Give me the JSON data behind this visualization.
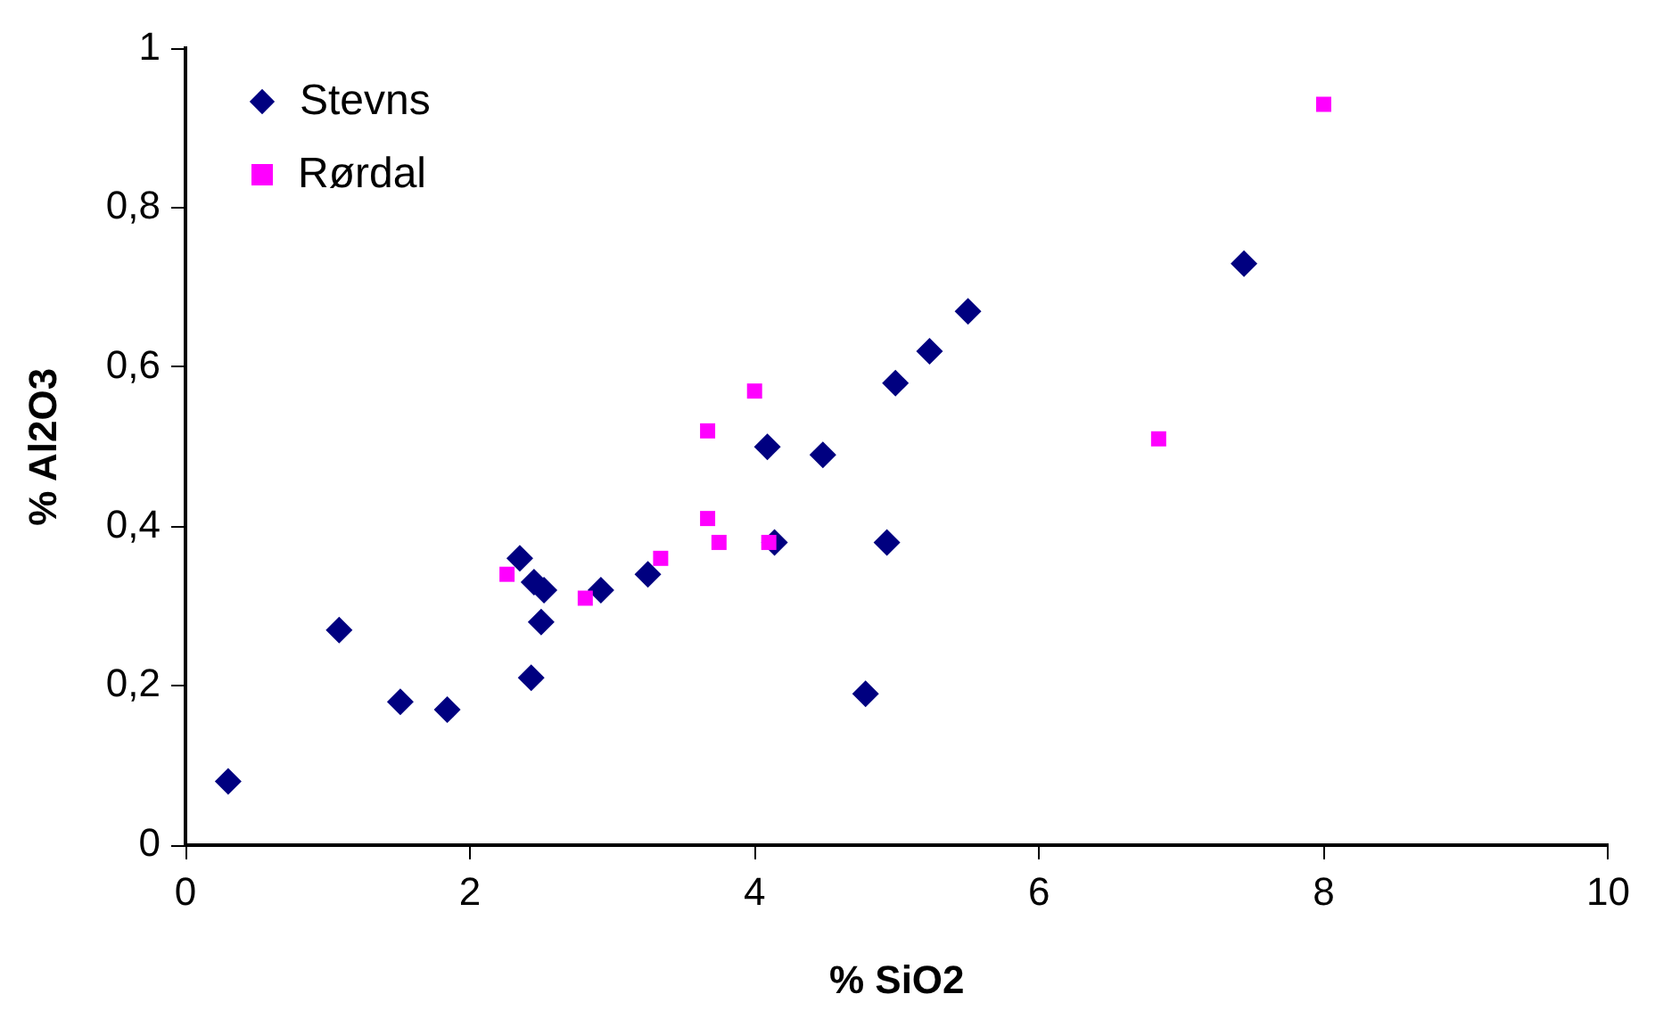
{
  "chart_data": {
    "type": "scatter",
    "xlabel": "% SiO2",
    "ylabel": "% Al2O3",
    "xlim": [
      0,
      10
    ],
    "xticks": [
      0,
      2,
      4,
      6,
      8,
      10
    ],
    "ylim": [
      0,
      1
    ],
    "yticks": [
      0,
      {
        "value": 0.2,
        "label": "0,2"
      },
      {
        "value": 0.4,
        "label": "0,4"
      },
      {
        "value": 0.6,
        "label": "0,6"
      },
      {
        "value": 0.8,
        "label": "0,8"
      },
      1
    ],
    "grid": false,
    "legend": "top left",
    "series": [
      {
        "name": "Stevns",
        "color": "#000080",
        "marker": "diamond",
        "x": [
          0.3,
          1.08,
          1.51,
          1.84,
          2.35,
          2.45,
          2.52,
          2.5,
          2.43,
          2.92,
          3.25,
          4.09,
          4.14,
          4.48,
          4.78,
          4.93,
          4.99,
          5.23,
          5.5,
          7.44
        ],
        "values": [
          0.08,
          0.27,
          0.18,
          0.17,
          0.36,
          0.33,
          0.32,
          0.28,
          0.21,
          0.32,
          0.34,
          0.5,
          0.38,
          0.49,
          0.19,
          0.38,
          0.58,
          0.62,
          0.67,
          0.73
        ]
      },
      {
        "name": "Rørdal",
        "color": "#ff00ff",
        "marker": "square",
        "x": [
          2.26,
          2.81,
          3.34,
          3.67,
          3.75,
          4.1,
          3.67,
          4.0,
          6.84,
          8.0
        ],
        "values": [
          0.34,
          0.31,
          0.36,
          0.41,
          0.38,
          0.38,
          0.52,
          0.57,
          0.51,
          0.93
        ]
      }
    ]
  }
}
